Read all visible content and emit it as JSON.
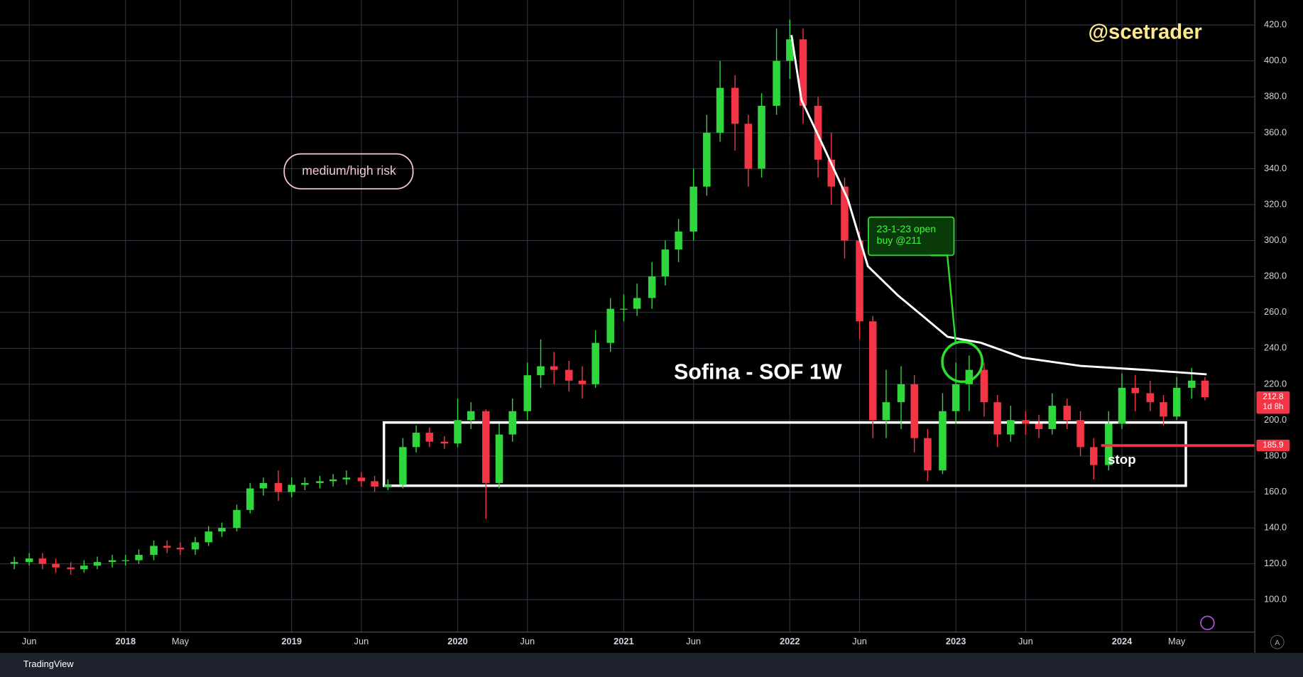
{
  "chart_data": {
    "type": "candlestick",
    "title": "Sofina - SOF 1W",
    "author": "@scetrader",
    "risk_label": "medium/high risk",
    "callout": [
      "23-1-23 open",
      "buy @211"
    ],
    "stop": {
      "value": 185.9,
      "text": "stop"
    },
    "last_price": {
      "value": 212.8,
      "countdown": "1d 8h"
    },
    "auto_scale_button": "A",
    "branding": "TradingView",
    "grid": true,
    "xlim": [
      2017.244,
      2024.8
    ],
    "ylim": [
      82,
      433.9
    ],
    "xticks": [
      {
        "value": 2017.42,
        "label": "Jun"
      },
      2018,
      {
        "value": 2018.33,
        "label": "May"
      },
      2019,
      {
        "value": 2019.42,
        "label": "Jun"
      },
      2020,
      {
        "value": 2020.42,
        "label": "Jun"
      },
      2021,
      {
        "value": 2021.42,
        "label": "Jun"
      },
      2022,
      {
        "value": 2022.42,
        "label": "Jun"
      },
      2023,
      {
        "value": 2023.42,
        "label": "Jun"
      },
      2024,
      {
        "value": 2024.33,
        "label": "May"
      }
    ],
    "yticks": [
      {
        "value": 100,
        "label": "100.0"
      },
      {
        "value": 120,
        "label": "120.0"
      },
      {
        "value": 140,
        "label": "140.0"
      },
      {
        "value": 160,
        "label": "160.0"
      },
      {
        "value": 180,
        "label": "180.0"
      },
      {
        "value": 200,
        "label": "200.0"
      },
      {
        "value": 220,
        "label": "220.0"
      },
      {
        "value": 240,
        "label": "240.0"
      },
      {
        "value": 260,
        "label": "260.0"
      },
      {
        "value": 280,
        "label": "280.0"
      },
      {
        "value": 300,
        "label": "300.0"
      },
      {
        "value": 320,
        "label": "320.0"
      },
      {
        "value": 340,
        "label": "340.0"
      },
      {
        "value": 360,
        "label": "360.0"
      },
      {
        "value": 380,
        "label": "380.0"
      },
      {
        "value": 400,
        "label": "400.0"
      },
      {
        "value": 420,
        "label": "420.0"
      }
    ],
    "candles": {
      "up_color": "#2fd63c",
      "down_color": "#f23645",
      "x": [
        2017.33,
        2017.42,
        2017.5,
        2017.58,
        2017.67,
        2017.75,
        2017.83,
        2017.92,
        2018.0,
        2018.08,
        2018.17,
        2018.25,
        2018.33,
        2018.42,
        2018.5,
        2018.58,
        2018.67,
        2018.75,
        2018.83,
        2018.92,
        2019.0,
        2019.08,
        2019.17,
        2019.25,
        2019.33,
        2019.42,
        2019.5,
        2019.58,
        2019.67,
        2019.75,
        2019.83,
        2019.92,
        2020.0,
        2020.08,
        2020.17,
        2020.25,
        2020.33,
        2020.42,
        2020.5,
        2020.58,
        2020.67,
        2020.75,
        2020.83,
        2020.92,
        2021.0,
        2021.08,
        2021.17,
        2021.25,
        2021.33,
        2021.42,
        2021.5,
        2021.58,
        2021.67,
        2021.75,
        2021.83,
        2021.92,
        2022.0,
        2022.08,
        2022.17,
        2022.25,
        2022.33,
        2022.42,
        2022.5,
        2022.58,
        2022.67,
        2022.75,
        2022.83,
        2022.92,
        2023.0,
        2023.08,
        2023.17,
        2023.25,
        2023.33,
        2023.42,
        2023.5,
        2023.58,
        2023.67,
        2023.75,
        2023.83,
        2023.92,
        2024.0,
        2024.08,
        2024.17,
        2024.25,
        2024.33,
        2024.42,
        2024.5
      ],
      "open": [
        120,
        121,
        123,
        120,
        118,
        117,
        119,
        121,
        122,
        122,
        125,
        130,
        129,
        128,
        132,
        138,
        140,
        150,
        162,
        165,
        160,
        164,
        165,
        166,
        167,
        168,
        166,
        163,
        164,
        185,
        193,
        188,
        187,
        200,
        205,
        165,
        192,
        205,
        225,
        230,
        228,
        222,
        220,
        243,
        262,
        262,
        268,
        280,
        295,
        305,
        330,
        360,
        385,
        365,
        340,
        375,
        400,
        412,
        375,
        345,
        330,
        300,
        255,
        200,
        210,
        220,
        190,
        172,
        205,
        220,
        228,
        210,
        192,
        200,
        198,
        195,
        208,
        200,
        185,
        175,
        198,
        218,
        215,
        210,
        202,
        218,
        222
      ],
      "high": [
        124,
        126,
        126,
        123,
        121,
        122,
        124,
        125,
        125,
        128,
        133,
        133,
        132,
        135,
        141,
        143,
        153,
        165,
        168,
        172,
        168,
        168,
        169,
        170,
        172,
        171,
        169,
        167,
        190,
        197,
        196,
        191,
        212,
        210,
        206,
        198,
        212,
        232,
        245,
        238,
        233,
        230,
        250,
        268,
        270,
        276,
        288,
        300,
        312,
        340,
        370,
        400,
        392,
        370,
        382,
        418,
        423,
        418,
        380,
        360,
        335,
        305,
        258,
        228,
        230,
        225,
        195,
        215,
        232,
        236,
        232,
        214,
        208,
        205,
        203,
        215,
        212,
        205,
        190,
        205,
        226,
        225,
        222,
        214,
        224,
        229,
        224
      ],
      "low": [
        117,
        119,
        117,
        115,
        114,
        115,
        117,
        118,
        119,
        120,
        122,
        126,
        125,
        125,
        130,
        135,
        138,
        148,
        158,
        155,
        157,
        161,
        162,
        163,
        164,
        163,
        160,
        161,
        162,
        182,
        185,
        184,
        185,
        195,
        145,
        162,
        188,
        200,
        218,
        220,
        216,
        212,
        218,
        238,
        255,
        258,
        262,
        275,
        288,
        300,
        325,
        355,
        350,
        330,
        335,
        370,
        390,
        365,
        335,
        320,
        290,
        245,
        190,
        190,
        195,
        182,
        166,
        170,
        198,
        205,
        202,
        185,
        188,
        192,
        190,
        192,
        195,
        180,
        167,
        172,
        195,
        205,
        205,
        197,
        200,
        212,
        211
      ],
      "close": [
        121,
        123,
        120,
        118,
        117,
        119,
        121,
        122,
        122,
        125,
        130,
        129,
        128,
        132,
        138,
        140,
        150,
        162,
        165,
        160,
        164,
        165,
        166,
        167,
        168,
        166,
        163,
        164,
        185,
        193,
        188,
        187,
        200,
        205,
        165,
        192,
        205,
        225,
        230,
        228,
        222,
        220,
        243,
        262,
        262,
        268,
        280,
        295,
        305,
        330,
        360,
        385,
        365,
        340,
        375,
        400,
        412,
        375,
        345,
        330,
        300,
        255,
        200,
        210,
        220,
        190,
        172,
        205,
        220,
        228,
        210,
        192,
        200,
        198,
        195,
        208,
        200,
        185,
        175,
        198,
        218,
        215,
        210,
        202,
        218,
        222,
        212.8
      ]
    },
    "moving_average": {
      "color": "#ffffff",
      "x": [
        2022.01,
        2022.07,
        2022.2,
        2022.35,
        2022.47,
        2022.65,
        2022.8,
        2022.95,
        2023.15,
        2023.4,
        2023.75,
        2024.15,
        2024.51
      ],
      "values": [
        414.4,
        378.3,
        352.8,
        322.8,
        285.7,
        269.5,
        258,
        246.4,
        243.1,
        234.8,
        230.2,
        227.9,
        225.5
      ]
    }
  }
}
